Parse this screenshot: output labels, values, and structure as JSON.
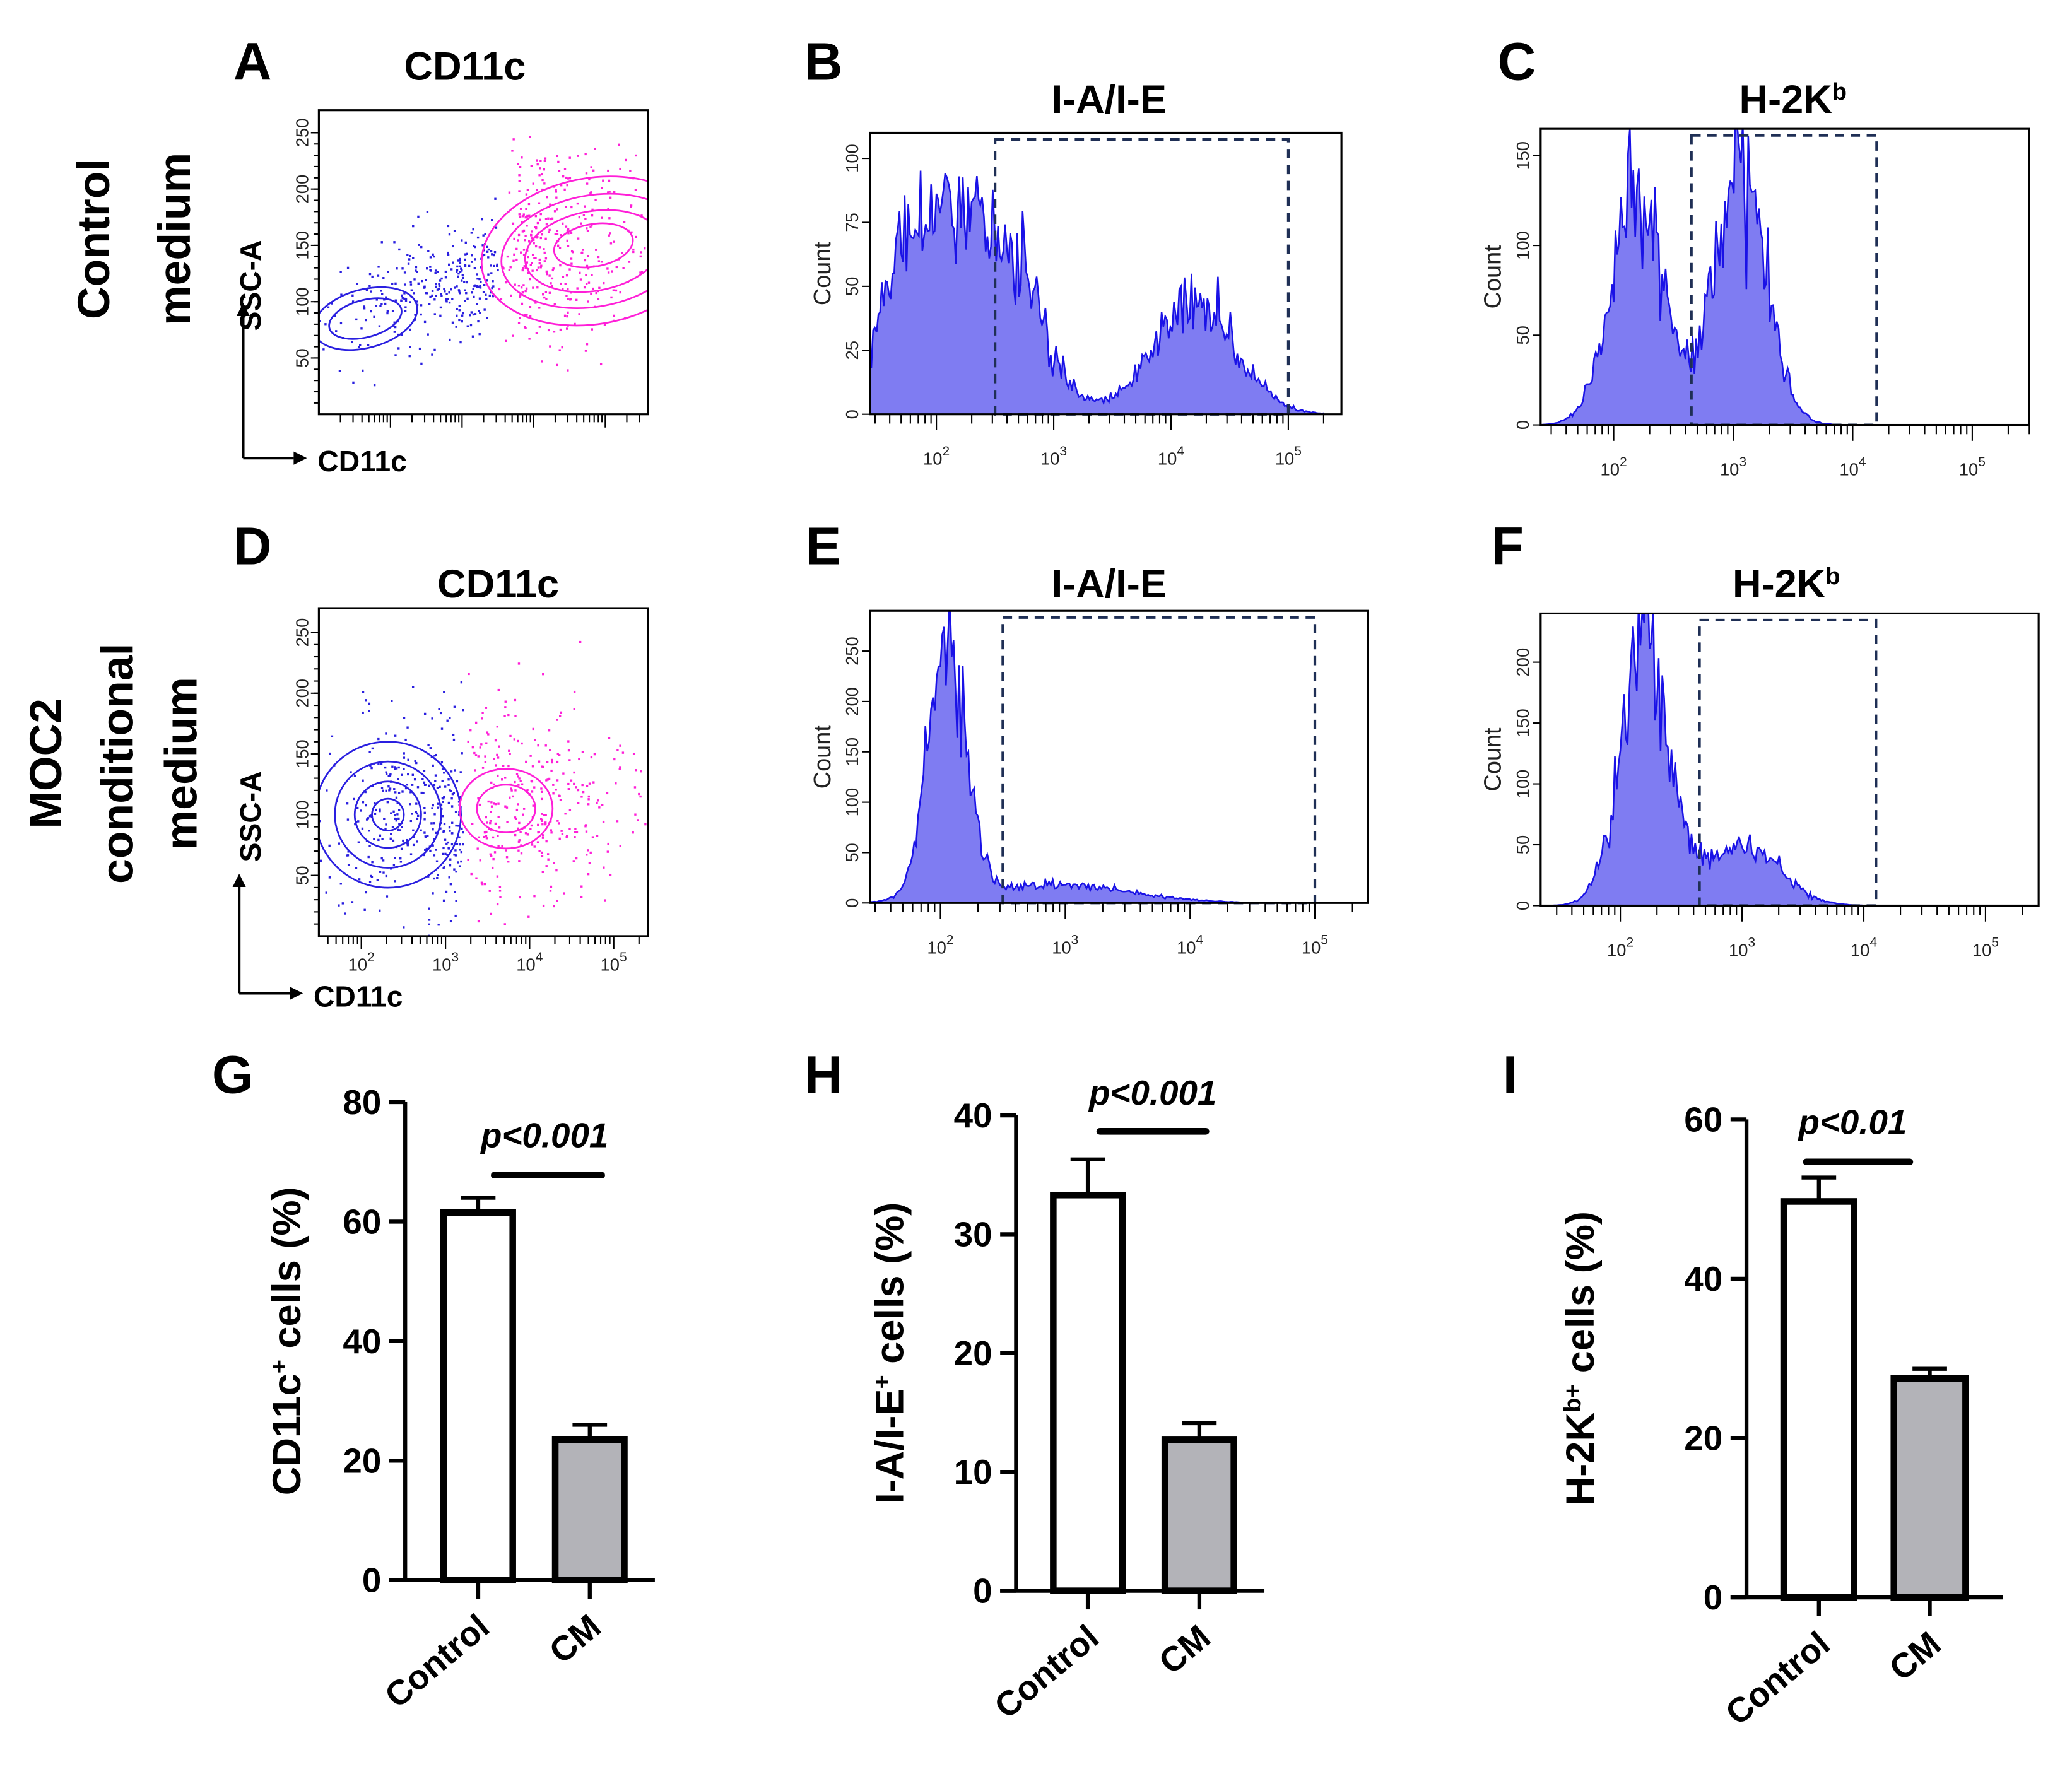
{
  "row_labels": {
    "top": [
      "Control",
      "medium"
    ],
    "bottom": [
      "MOC2",
      "conditional",
      "medium"
    ]
  },
  "colors": {
    "blue": "#2a1fe0",
    "magenta": "#ff1fd8",
    "hist_fill": "#7f7cf2",
    "hist_line": "#1a12e6",
    "gate": "#1f2f55",
    "cm_bar": "#b3b3b8"
  },
  "chart_data": [
    {
      "panel": "A",
      "type": "scatter",
      "title": "CD11c",
      "xlabel": "CD11c",
      "ylabel": "SSC-A",
      "yticks": [
        "50",
        "100",
        "150",
        "200",
        "250"
      ],
      "xticks": [],
      "populations": [
        "CD11c-negative (blue)",
        "CD11c-positive (magenta)"
      ]
    },
    {
      "panel": "B",
      "type": "area",
      "title": "I-A/I-E",
      "ylabel": "Count",
      "yticks": [
        "0",
        "25",
        "50",
        "75",
        "100"
      ],
      "xticks": [
        "10^2",
        "10^3",
        "10^4",
        "10^5"
      ],
      "ylim": [
        0,
        110
      ],
      "peaks": [
        {
          "log": 1.9,
          "count": 72,
          "sd": 0.35
        },
        {
          "log": 2.6,
          "count": 60,
          "sd": 0.3
        },
        {
          "log": 4.2,
          "count": 45,
          "sd": 0.35
        }
      ],
      "gate_log": [
        2.5,
        5.0
      ]
    },
    {
      "panel": "C",
      "type": "area",
      "title": "H-2K",
      "title_sup": "b",
      "ylabel": "Count",
      "yticks": [
        "0",
        "50",
        "100",
        "150"
      ],
      "xticks": [
        "10^2",
        "10^3",
        "10^4",
        "10^5"
      ],
      "ylim": [
        0,
        165
      ],
      "peaks": [
        {
          "log": 2.2,
          "count": 125,
          "sd": 0.22
        },
        {
          "log": 3.05,
          "count": 140,
          "sd": 0.22
        }
      ],
      "gate_log": [
        2.65,
        4.2
      ]
    },
    {
      "panel": "D",
      "type": "scatter",
      "title": "CD11c",
      "xlabel": "CD11c",
      "ylabel": "SSC-A",
      "yticks": [
        "50",
        "100",
        "150",
        "200",
        "250"
      ],
      "xticks": [
        "10^2",
        "10^3",
        "10^4",
        "10^5"
      ],
      "populations": [
        "CD11c-negative (blue)",
        "CD11c-positive (magenta)"
      ]
    },
    {
      "panel": "E",
      "type": "area",
      "title": "I-A/I-E",
      "ylabel": "Count",
      "yticks": [
        "0",
        "50",
        "100",
        "150",
        "200",
        "250"
      ],
      "xticks": [
        "10^2",
        "10^3",
        "10^4",
        "10^5"
      ],
      "ylim": [
        0,
        290
      ],
      "peaks": [
        {
          "log": 2.05,
          "count": 250,
          "sd": 0.15
        },
        {
          "log": 2.9,
          "count": 18,
          "sd": 0.6
        }
      ],
      "gate_log": [
        2.5,
        5.0
      ]
    },
    {
      "panel": "F",
      "type": "area",
      "title": "H-2K",
      "title_sup": "b",
      "ylabel": "Count",
      "yticks": [
        "0",
        "50",
        "100",
        "150",
        "200"
      ],
      "xticks": [
        "10^2",
        "10^3",
        "10^4",
        "10^5"
      ],
      "ylim": [
        0,
        240
      ],
      "peaks": [
        {
          "log": 2.2,
          "count": 205,
          "sd": 0.2
        },
        {
          "log": 3.0,
          "count": 50,
          "sd": 0.3
        }
      ],
      "gate_log": [
        2.65,
        4.1
      ]
    },
    {
      "panel": "G",
      "type": "bar",
      "categories": [
        "Control",
        "CM"
      ],
      "values": [
        61.5,
        23.5
      ],
      "errors": [
        2.5,
        2.5
      ],
      "ylabel": "CD11c",
      "ylabel_sup": "+",
      "ylabel_rest": " cells (%)",
      "yticks": [
        "0",
        "20",
        "40",
        "60",
        "80"
      ],
      "ylim": [
        0,
        80
      ],
      "pvalue": "p<0.001"
    },
    {
      "panel": "H",
      "type": "bar",
      "categories": [
        "Control",
        "CM"
      ],
      "values": [
        33.3,
        12.7
      ],
      "errors": [
        3.0,
        1.4
      ],
      "ylabel": "I-A/I-E",
      "ylabel_sup": "+",
      "ylabel_rest": " cells (%)",
      "yticks": [
        "0",
        "10",
        "20",
        "30",
        "40"
      ],
      "ylim": [
        0,
        40
      ],
      "pvalue": "p<0.001"
    },
    {
      "panel": "I",
      "type": "bar",
      "categories": [
        "Control",
        "CM"
      ],
      "values": [
        49.7,
        27.5
      ],
      "errors": [
        3.0,
        1.2
      ],
      "ylabel": "H-2K",
      "ylabel_sup": "b+",
      "ylabel_rest": " cells (%)",
      "yticks": [
        "0",
        "20",
        "40",
        "60"
      ],
      "ylim": [
        0,
        60
      ],
      "pvalue": "p<0.01"
    }
  ]
}
